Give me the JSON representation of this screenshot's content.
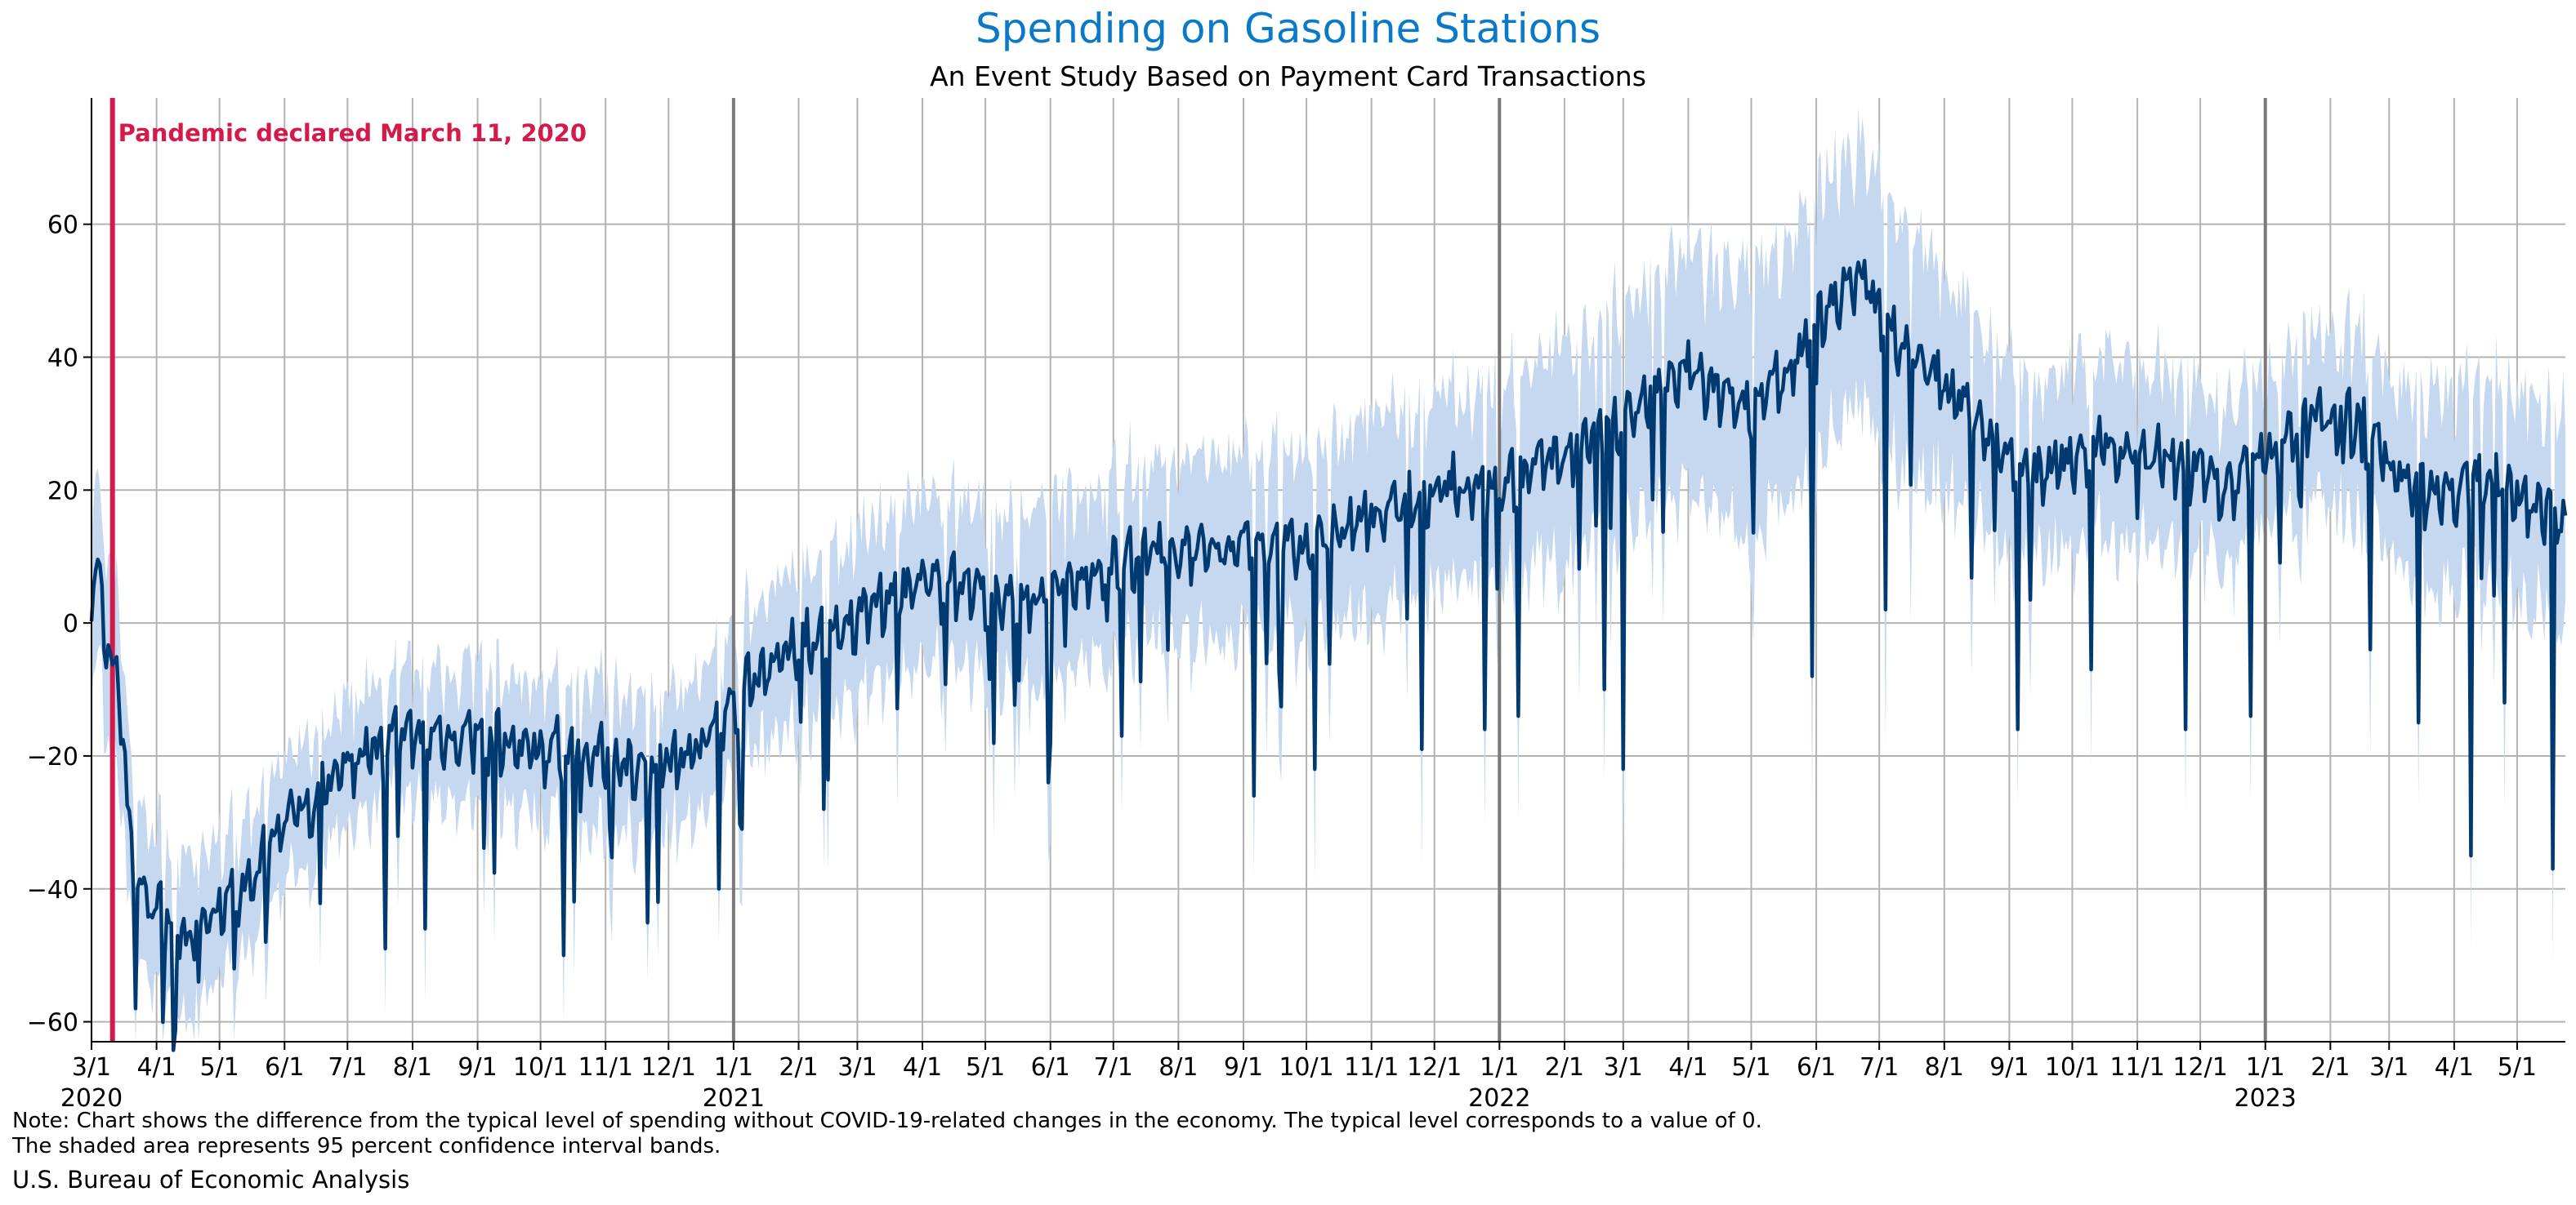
{
  "title": "Spending on Gasoline Stations",
  "subtitle": "An Event Study Based on Payment Card Transactions",
  "annotation": "Pandemic declared March 11, 2020",
  "note_line1": "Note: Chart shows the difference from the typical level of spending without COVID-19-related changes in the economy. The typical level corresponds to a value of 0.",
  "note_line2": "The shaded area represents 95 percent confidence interval bands.",
  "source": "U.S. Bureau of Economic Analysis",
  "colors": {
    "title": "#0a79c8",
    "line": "#003a70",
    "band": "#c5d8ef",
    "annotation": "#d41a4a",
    "grid": "#b3b3b3",
    "year_line": "#7a7a7a"
  },
  "chart_data": {
    "type": "line",
    "x_start": "2020-03-01",
    "x_end": "2023-05-24",
    "ylim": [
      -63,
      79
    ],
    "yticks": [
      -60,
      -40,
      -20,
      0,
      20,
      40,
      60
    ],
    "grid": "both",
    "xticks": [
      {
        "date": "2020-03-01",
        "label": "3/1",
        "year": "2020"
      },
      {
        "date": "2020-04-01",
        "label": "4/1"
      },
      {
        "date": "2020-05-01",
        "label": "5/1"
      },
      {
        "date": "2020-06-01",
        "label": "6/1"
      },
      {
        "date": "2020-07-01",
        "label": "7/1"
      },
      {
        "date": "2020-08-01",
        "label": "8/1"
      },
      {
        "date": "2020-09-01",
        "label": "9/1"
      },
      {
        "date": "2020-10-01",
        "label": "10/1"
      },
      {
        "date": "2020-11-01",
        "label": "11/1"
      },
      {
        "date": "2020-12-01",
        "label": "12/1"
      },
      {
        "date": "2021-01-01",
        "label": "1/1",
        "year": "2021"
      },
      {
        "date": "2021-02-01",
        "label": "2/1"
      },
      {
        "date": "2021-03-01",
        "label": "3/1"
      },
      {
        "date": "2021-04-01",
        "label": "4/1"
      },
      {
        "date": "2021-05-01",
        "label": "5/1"
      },
      {
        "date": "2021-06-01",
        "label": "6/1"
      },
      {
        "date": "2021-07-01",
        "label": "7/1"
      },
      {
        "date": "2021-08-01",
        "label": "8/1"
      },
      {
        "date": "2021-09-01",
        "label": "9/1"
      },
      {
        "date": "2021-10-01",
        "label": "10/1"
      },
      {
        "date": "2021-11-01",
        "label": "11/1"
      },
      {
        "date": "2021-12-01",
        "label": "12/1"
      },
      {
        "date": "2022-01-01",
        "label": "1/1",
        "year": "2022"
      },
      {
        "date": "2022-02-01",
        "label": "2/1"
      },
      {
        "date": "2022-03-01",
        "label": "3/1"
      },
      {
        "date": "2022-04-01",
        "label": "4/1"
      },
      {
        "date": "2022-05-01",
        "label": "5/1"
      },
      {
        "date": "2022-06-01",
        "label": "6/1"
      },
      {
        "date": "2022-07-01",
        "label": "7/1"
      },
      {
        "date": "2022-08-01",
        "label": "8/1"
      },
      {
        "date": "2022-09-01",
        "label": "9/1"
      },
      {
        "date": "2022-10-01",
        "label": "10/1"
      },
      {
        "date": "2022-11-01",
        "label": "11/1"
      },
      {
        "date": "2022-12-01",
        "label": "12/1"
      },
      {
        "date": "2023-01-01",
        "label": "1/1",
        "year": "2023"
      },
      {
        "date": "2023-02-01",
        "label": "2/1"
      },
      {
        "date": "2023-03-01",
        "label": "3/1"
      },
      {
        "date": "2023-04-01",
        "label": "4/1"
      },
      {
        "date": "2023-05-01",
        "label": "5/1"
      }
    ],
    "event_date": "2020-03-11",
    "series": [
      {
        "role": "estimate",
        "points": [
          [
            "2020-03-01",
            5
          ],
          [
            "2020-03-04",
            8
          ],
          [
            "2020-03-08",
            -6
          ],
          [
            "2020-03-11",
            -7
          ],
          [
            "2020-03-14",
            -9
          ],
          [
            "2020-03-18",
            -28
          ],
          [
            "2020-03-22",
            -40
          ],
          [
            "2020-03-28",
            -43
          ],
          [
            "2020-04-05",
            -45
          ],
          [
            "2020-04-12",
            -47
          ],
          [
            "2020-04-19",
            -48
          ],
          [
            "2020-04-26",
            -46
          ],
          [
            "2020-05-03",
            -43
          ],
          [
            "2020-05-10",
            -41
          ],
          [
            "2020-05-17",
            -38
          ],
          [
            "2020-05-24",
            -36
          ],
          [
            "2020-06-01",
            -31
          ],
          [
            "2020-06-08",
            -29
          ],
          [
            "2020-06-15",
            -27
          ],
          [
            "2020-06-22",
            -25
          ],
          [
            "2020-07-01",
            -22
          ],
          [
            "2020-07-10",
            -20
          ],
          [
            "2020-07-20",
            -19
          ],
          [
            "2020-08-01",
            -18
          ],
          [
            "2020-08-15",
            -18
          ],
          [
            "2020-09-01",
            -18
          ],
          [
            "2020-09-15",
            -19
          ],
          [
            "2020-10-01",
            -20
          ],
          [
            "2020-10-15",
            -20
          ],
          [
            "2020-11-01",
            -21
          ],
          [
            "2020-11-15",
            -22
          ],
          [
            "2020-12-01",
            -22
          ],
          [
            "2020-12-15",
            -20
          ],
          [
            "2021-01-01",
            -12
          ],
          [
            "2021-01-15",
            -8
          ],
          [
            "2021-02-01",
            -4
          ],
          [
            "2021-02-15",
            -3
          ],
          [
            "2021-03-01",
            0
          ],
          [
            "2021-03-15",
            3
          ],
          [
            "2021-04-01",
            5
          ],
          [
            "2021-04-15",
            5
          ],
          [
            "2021-05-01",
            4
          ],
          [
            "2021-05-15",
            2
          ],
          [
            "2021-06-01",
            4
          ],
          [
            "2021-06-15",
            6
          ],
          [
            "2021-07-01",
            8
          ],
          [
            "2021-07-15",
            9
          ],
          [
            "2021-08-01",
            10
          ],
          [
            "2021-08-15",
            10
          ],
          [
            "2021-09-01",
            10
          ],
          [
            "2021-09-15",
            10
          ],
          [
            "2021-10-01",
            11
          ],
          [
            "2021-10-15",
            13
          ],
          [
            "2021-11-01",
            15
          ],
          [
            "2021-11-15",
            17
          ],
          [
            "2021-12-01",
            19
          ],
          [
            "2021-12-15",
            20
          ],
          [
            "2022-01-01",
            20
          ],
          [
            "2022-01-15",
            22
          ],
          [
            "2022-02-01",
            25
          ],
          [
            "2022-02-15",
            27
          ],
          [
            "2022-03-01",
            30
          ],
          [
            "2022-03-15",
            34
          ],
          [
            "2022-04-01",
            37
          ],
          [
            "2022-04-15",
            34
          ],
          [
            "2022-05-01",
            31
          ],
          [
            "2022-05-15",
            36
          ],
          [
            "2022-06-01",
            44
          ],
          [
            "2022-06-15",
            50
          ],
          [
            "2022-06-25",
            52
          ],
          [
            "2022-07-01",
            45
          ],
          [
            "2022-07-15",
            40
          ],
          [
            "2022-08-01",
            35
          ],
          [
            "2022-08-15",
            30
          ],
          [
            "2022-09-01",
            24
          ],
          [
            "2022-09-15",
            22
          ],
          [
            "2022-10-01",
            24
          ],
          [
            "2022-10-15",
            26
          ],
          [
            "2022-11-01",
            25
          ],
          [
            "2022-11-15",
            24
          ],
          [
            "2022-12-01",
            22
          ],
          [
            "2022-12-15",
            20
          ],
          [
            "2023-01-01",
            24
          ],
          [
            "2023-01-15",
            28
          ],
          [
            "2023-02-01",
            31
          ],
          [
            "2023-02-15",
            29
          ],
          [
            "2023-03-01",
            23
          ],
          [
            "2023-03-15",
            19
          ],
          [
            "2023-04-01",
            19
          ],
          [
            "2023-04-15",
            21
          ],
          [
            "2023-05-01",
            18
          ],
          [
            "2023-05-24",
            15
          ]
        ],
        "dips": [
          [
            "2020-03-22",
            -58
          ],
          [
            "2020-04-21",
            -54
          ],
          [
            "2020-05-08",
            -52
          ],
          [
            "2020-07-19",
            -49
          ],
          [
            "2020-08-07",
            -46
          ],
          [
            "2020-10-12",
            -50
          ],
          [
            "2020-11-26",
            -42
          ],
          [
            "2020-12-25",
            -40
          ],
          [
            "2021-01-05",
            -31
          ],
          [
            "2021-02-13",
            -28
          ],
          [
            "2021-05-31",
            -24
          ],
          [
            "2021-07-05",
            -17
          ],
          [
            "2021-09-06",
            -26
          ],
          [
            "2021-10-05",
            -22
          ],
          [
            "2021-11-25",
            -19
          ],
          [
            "2021-12-25",
            -16
          ],
          [
            "2022-01-10",
            -14
          ],
          [
            "2022-02-20",
            -10
          ],
          [
            "2022-03-01",
            -22
          ],
          [
            "2022-05-30",
            -8
          ],
          [
            "2022-07-04",
            2
          ],
          [
            "2022-09-05",
            -16
          ],
          [
            "2022-10-10",
            -7
          ],
          [
            "2022-11-24",
            -16
          ],
          [
            "2022-12-25",
            -14
          ],
          [
            "2023-02-20",
            -4
          ],
          [
            "2023-03-15",
            -15
          ],
          [
            "2023-04-09",
            -35
          ],
          [
            "2023-04-25",
            -12
          ],
          [
            "2023-05-18",
            -37
          ]
        ],
        "band_halfwidth": [
          [
            "2020-03-01",
            13
          ],
          [
            "2020-06-01",
            9
          ],
          [
            "2021-01-01",
            11
          ],
          [
            "2021-07-01",
            13
          ],
          [
            "2022-01-01",
            15
          ],
          [
            "2022-06-15",
            20
          ],
          [
            "2022-09-01",
            14
          ],
          [
            "2023-01-01",
            12
          ],
          [
            "2023-05-24",
            16
          ]
        ]
      }
    ]
  }
}
